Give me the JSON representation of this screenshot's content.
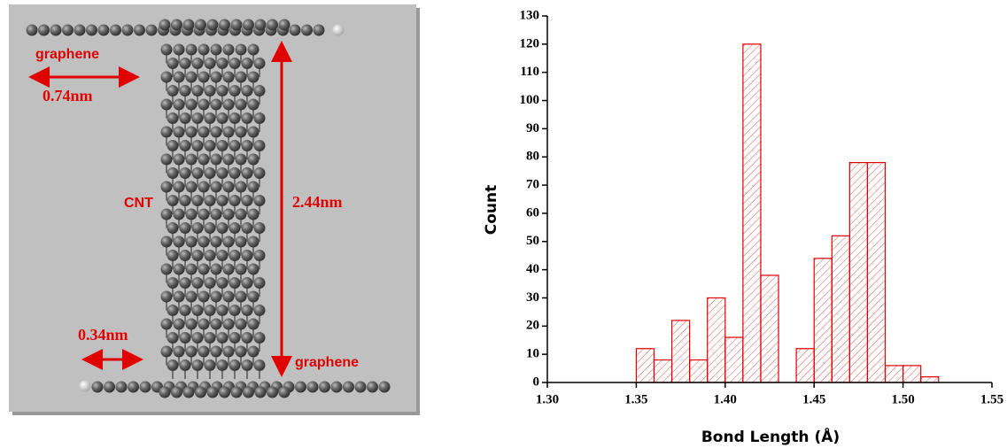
{
  "diagram": {
    "labels": [
      "graphene",
      "0.74nm",
      "CNT",
      "2.44nm",
      "0.34nm",
      "graphene"
    ]
  },
  "chart_data": {
    "type": "histogram",
    "xlabel": "Bond Length (Å)",
    "ylabel": "Count",
    "color": "#e00000",
    "bins": [
      1.35,
      1.36,
      1.37,
      1.38,
      1.39,
      1.4,
      1.41,
      1.42,
      1.43,
      1.44,
      1.45,
      1.46,
      1.47,
      1.48,
      1.49,
      1.5,
      1.51,
      1.52
    ],
    "values": [
      12,
      8,
      22,
      8,
      30,
      16,
      120,
      38,
      0,
      12,
      44,
      52,
      78,
      78,
      6,
      6,
      2
    ],
    "xlim": [
      1.3,
      1.55
    ],
    "xticks": [
      {
        "value": 1.3,
        "label": "1.30"
      },
      1.35,
      {
        "value": 1.4,
        "label": "1.40"
      },
      1.45,
      {
        "value": 1.5,
        "label": "1.50"
      },
      1.55
    ],
    "ylim": [
      0,
      130
    ],
    "yticks": [
      0,
      10,
      20,
      30,
      40,
      50,
      60,
      70,
      80,
      90,
      100,
      110,
      120,
      130
    ]
  }
}
